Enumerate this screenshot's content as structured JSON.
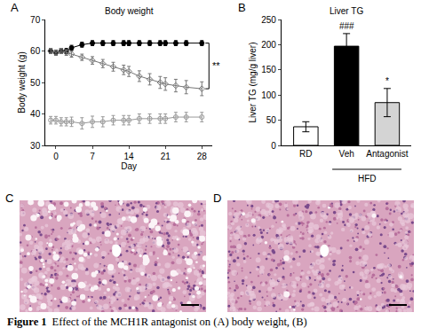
{
  "chart_data": [
    {
      "panel": "A",
      "type": "line",
      "title": "Body weight",
      "x_label": "Day",
      "y_label": "Body weight (g)",
      "x": [
        -1,
        0,
        1,
        2,
        3,
        5,
        7,
        9,
        11,
        13,
        14,
        16,
        18,
        20,
        21,
        23,
        25,
        28
      ],
      "series": [
        {
          "color": "#000000",
          "marker": "circle",
          "line_style": "solid",
          "values": [
            60,
            59.5,
            60,
            60,
            61,
            62,
            62.5,
            62.5,
            62.5,
            62.5,
            62.5,
            62.5,
            62.5,
            62.5,
            62.5,
            62.5,
            62.5,
            62.5
          ],
          "error": [
            0.8,
            0.8,
            0.8,
            0.8,
            0.8,
            0.8,
            0.8,
            0.8,
            0.8,
            0.8,
            0.8,
            0.8,
            0.8,
            0.8,
            0.8,
            0.8,
            0.8,
            0.8
          ]
        },
        {
          "color": "#777777",
          "marker": "diamond-open",
          "line_style": "solid",
          "values": [
            60,
            59.5,
            60,
            59.5,
            59,
            58,
            57,
            56,
            55,
            54,
            53.5,
            52,
            51,
            50,
            49.5,
            49,
            48.5,
            48
          ],
          "error": [
            0.8,
            0.8,
            0.8,
            0.9,
            1,
            1,
            1.2,
            1.3,
            1.4,
            1.5,
            1.6,
            1.7,
            1.8,
            1.9,
            2,
            2,
            2.1,
            2.2
          ]
        },
        {
          "color": "#999999",
          "marker": "circle-open",
          "line_style": "solid",
          "values": [
            38,
            38,
            37.5,
            37.5,
            37.5,
            37,
            37.5,
            37.5,
            38,
            38,
            38,
            38.5,
            38.5,
            38.5,
            38.5,
            39,
            39,
            39
          ],
          "error": [
            1.2,
            1.2,
            1.3,
            1.3,
            1.5,
            1.8,
            1.8,
            1.6,
            1.5,
            1.5,
            1.5,
            1.5,
            1.5,
            1.5,
            1.5,
            1.5,
            1.5,
            1.5
          ]
        }
      ],
      "xlim": [
        -2,
        30
      ],
      "xticks": [
        0,
        7,
        14,
        21,
        28
      ],
      "ylim": [
        30,
        70
      ],
      "yticks": [
        30,
        40,
        50,
        60,
        70
      ],
      "grid": false,
      "annotations": [
        {
          "text": "**"
        }
      ]
    },
    {
      "panel": "B",
      "type": "bar",
      "title": "Liver TG",
      "y_label": "Liver TG (mg/g liver)",
      "categories": [
        "RD",
        "Veh",
        "Antagonist"
      ],
      "values": [
        37,
        197,
        85
      ],
      "error": [
        10,
        25,
        28
      ],
      "colors": [
        "#ffffff",
        "#000000",
        "#d4d4d4"
      ],
      "ylim": [
        0,
        250
      ],
      "yticks": [
        0,
        50,
        100,
        150,
        200,
        250
      ],
      "grid": false,
      "annotations": [
        {
          "category": "Veh",
          "text": "###"
        },
        {
          "category": "Antagonist",
          "text": "*"
        }
      ],
      "groups": [
        {
          "text": "HFD",
          "categories": [
            "Veh",
            "Antagonist"
          ]
        }
      ]
    }
  ],
  "images": [
    {
      "panel": "C"
    },
    {
      "panel": "D"
    }
  ],
  "caption": {
    "label": "Figure 1",
    "text": "Effect of the MCH1R antagonist on (A) body weight, (B)"
  }
}
